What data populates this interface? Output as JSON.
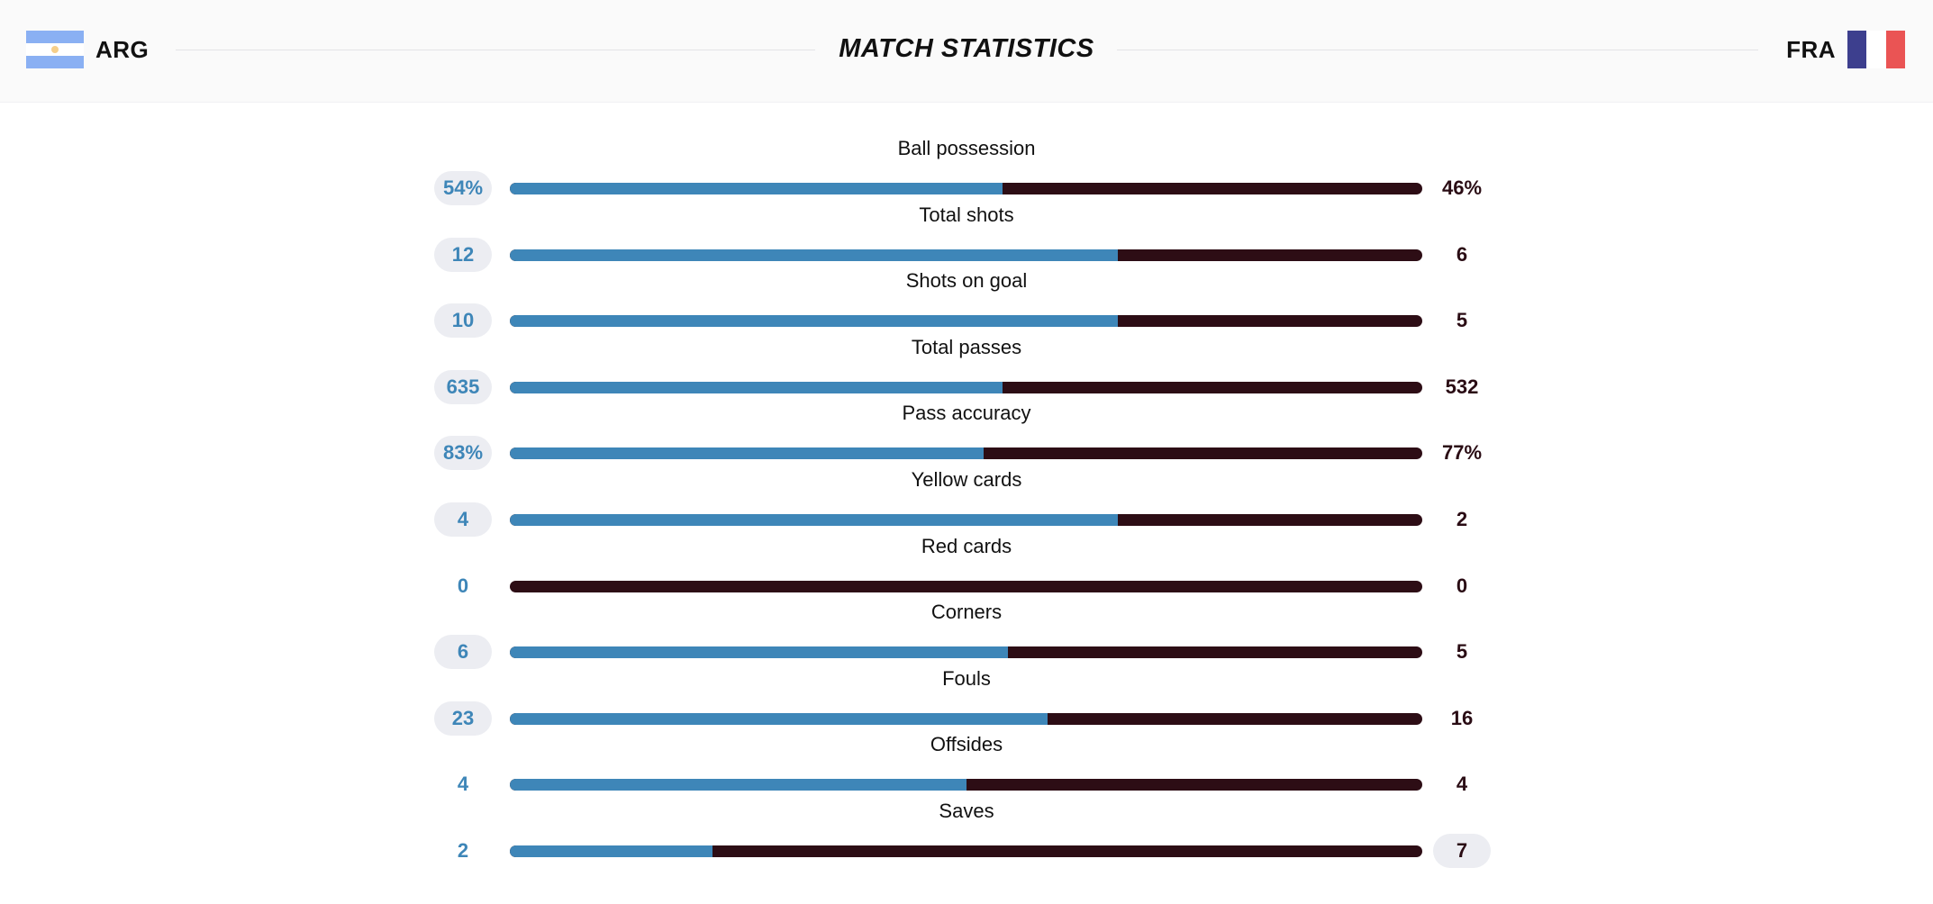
{
  "header": {
    "title": "MATCH STATISTICS",
    "home_team": {
      "code": "ARG",
      "flag_icon": "argentina-flag-icon"
    },
    "away_team": {
      "code": "FRA",
      "flag_icon": "france-flag-icon"
    }
  },
  "colors": {
    "home": "#3e86b8",
    "away": "#2d0d15",
    "badge": "#ecedf2"
  },
  "stats": [
    {
      "label": "Ball possession",
      "home": "54%",
      "away": "46%",
      "home_share": 0.54,
      "leader": "home"
    },
    {
      "label": "Total shots",
      "home": "12",
      "away": "6",
      "home_share": 0.6667,
      "leader": "home"
    },
    {
      "label": "Shots on goal",
      "home": "10",
      "away": "5",
      "home_share": 0.6667,
      "leader": "home"
    },
    {
      "label": "Total passes",
      "home": "635",
      "away": "532",
      "home_share": 0.54,
      "leader": "home"
    },
    {
      "label": "Pass accuracy",
      "home": "83%",
      "away": "77%",
      "home_share": 0.519,
      "leader": "home"
    },
    {
      "label": "Yellow cards",
      "home": "4",
      "away": "2",
      "home_share": 0.6667,
      "leader": "home"
    },
    {
      "label": "Red cards",
      "home": "0",
      "away": "0",
      "home_share": 0,
      "leader": "none"
    },
    {
      "label": "Corners",
      "home": "6",
      "away": "5",
      "home_share": 0.5455,
      "leader": "home"
    },
    {
      "label": "Fouls",
      "home": "23",
      "away": "16",
      "home_share": 0.5897,
      "leader": "home"
    },
    {
      "label": "Offsides",
      "home": "4",
      "away": "4",
      "home_share": 0.5,
      "leader": "none"
    },
    {
      "label": "Saves",
      "home": "2",
      "away": "7",
      "home_share": 0.2222,
      "leader": "away"
    }
  ]
}
